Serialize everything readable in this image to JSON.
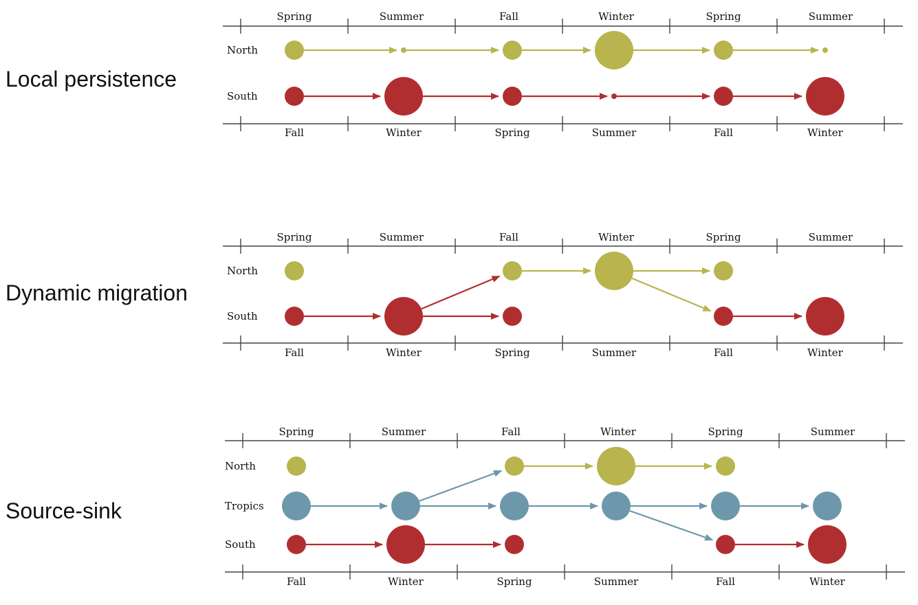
{
  "colors": {
    "North": "#b8b44e",
    "South": "#b12e30",
    "Tropics": "#6d97ab",
    "axis": "#444444"
  },
  "panels": [
    {
      "id": "local-persistence",
      "title": "Local persistence",
      "top_seasons": [
        "Spring",
        "Summer",
        "Fall",
        "Winter",
        "Spring",
        "Summer"
      ],
      "bottom_seasons": [
        "Fall",
        "Winter",
        "Spring",
        "Summer",
        "Fall",
        "Winter"
      ],
      "rows": [
        "North",
        "South"
      ],
      "nodes": [
        {
          "row": "North",
          "col": 0,
          "size": "m"
        },
        {
          "row": "North",
          "col": 1,
          "size": "xs"
        },
        {
          "row": "North",
          "col": 2,
          "size": "m"
        },
        {
          "row": "North",
          "col": 3,
          "size": "l"
        },
        {
          "row": "North",
          "col": 4,
          "size": "m"
        },
        {
          "row": "North",
          "col": 5,
          "size": "xs"
        },
        {
          "row": "South",
          "col": 0,
          "size": "m"
        },
        {
          "row": "South",
          "col": 1,
          "size": "l"
        },
        {
          "row": "South",
          "col": 2,
          "size": "m"
        },
        {
          "row": "South",
          "col": 3,
          "size": "xs"
        },
        {
          "row": "South",
          "col": 4,
          "size": "m"
        },
        {
          "row": "South",
          "col": 5,
          "size": "l"
        }
      ],
      "edges": [
        {
          "from": [
            "North",
            0
          ],
          "to": [
            "North",
            1
          ]
        },
        {
          "from": [
            "North",
            1
          ],
          "to": [
            "North",
            2
          ]
        },
        {
          "from": [
            "North",
            2
          ],
          "to": [
            "North",
            3
          ]
        },
        {
          "from": [
            "North",
            3
          ],
          "to": [
            "North",
            4
          ]
        },
        {
          "from": [
            "North",
            4
          ],
          "to": [
            "North",
            5
          ]
        },
        {
          "from": [
            "South",
            0
          ],
          "to": [
            "South",
            1
          ]
        },
        {
          "from": [
            "South",
            1
          ],
          "to": [
            "South",
            2
          ]
        },
        {
          "from": [
            "South",
            2
          ],
          "to": [
            "South",
            3
          ]
        },
        {
          "from": [
            "South",
            3
          ],
          "to": [
            "South",
            4
          ]
        },
        {
          "from": [
            "South",
            4
          ],
          "to": [
            "South",
            5
          ]
        }
      ]
    },
    {
      "id": "dynamic-migration",
      "title": "Dynamic migration",
      "top_seasons": [
        "Spring",
        "Summer",
        "Fall",
        "Winter",
        "Spring",
        "Summer"
      ],
      "bottom_seasons": [
        "Fall",
        "Winter",
        "Spring",
        "Summer",
        "Fall",
        "Winter"
      ],
      "rows": [
        "North",
        "South"
      ],
      "nodes": [
        {
          "row": "North",
          "col": 0,
          "size": "m"
        },
        {
          "row": "North",
          "col": 2,
          "size": "m"
        },
        {
          "row": "North",
          "col": 3,
          "size": "l"
        },
        {
          "row": "North",
          "col": 4,
          "size": "m"
        },
        {
          "row": "South",
          "col": 0,
          "size": "m"
        },
        {
          "row": "South",
          "col": 1,
          "size": "l"
        },
        {
          "row": "South",
          "col": 2,
          "size": "m"
        },
        {
          "row": "South",
          "col": 4,
          "size": "m"
        },
        {
          "row": "South",
          "col": 5,
          "size": "l"
        }
      ],
      "edges": [
        {
          "from": [
            "South",
            0
          ],
          "to": [
            "South",
            1
          ]
        },
        {
          "from": [
            "South",
            1
          ],
          "to": [
            "North",
            2
          ]
        },
        {
          "from": [
            "South",
            1
          ],
          "to": [
            "South",
            2
          ]
        },
        {
          "from": [
            "North",
            2
          ],
          "to": [
            "North",
            3
          ]
        },
        {
          "from": [
            "North",
            3
          ],
          "to": [
            "North",
            4
          ]
        },
        {
          "from": [
            "North",
            3
          ],
          "to": [
            "South",
            4
          ]
        },
        {
          "from": [
            "South",
            4
          ],
          "to": [
            "South",
            5
          ]
        }
      ]
    },
    {
      "id": "source-sink",
      "title": "Source-sink",
      "top_seasons": [
        "Spring",
        "Summer",
        "Fall",
        "Winter",
        "Spring",
        "Summer"
      ],
      "bottom_seasons": [
        "Fall",
        "Winter",
        "Spring",
        "Summer",
        "Fall",
        "Winter"
      ],
      "rows": [
        "North",
        "Tropics",
        "South"
      ],
      "nodes": [
        {
          "row": "North",
          "col": 0,
          "size": "m"
        },
        {
          "row": "North",
          "col": 2,
          "size": "m"
        },
        {
          "row": "North",
          "col": 3,
          "size": "l"
        },
        {
          "row": "North",
          "col": 4,
          "size": "m"
        },
        {
          "row": "Tropics",
          "col": 0,
          "size": "ml"
        },
        {
          "row": "Tropics",
          "col": 1,
          "size": "ml"
        },
        {
          "row": "Tropics",
          "col": 2,
          "size": "ml"
        },
        {
          "row": "Tropics",
          "col": 3,
          "size": "ml"
        },
        {
          "row": "Tropics",
          "col": 4,
          "size": "ml"
        },
        {
          "row": "Tropics",
          "col": 5,
          "size": "ml"
        },
        {
          "row": "South",
          "col": 0,
          "size": "m"
        },
        {
          "row": "South",
          "col": 1,
          "size": "l"
        },
        {
          "row": "South",
          "col": 2,
          "size": "m"
        },
        {
          "row": "South",
          "col": 4,
          "size": "m"
        },
        {
          "row": "South",
          "col": 5,
          "size": "l"
        }
      ],
      "edges": [
        {
          "from": [
            "Tropics",
            0
          ],
          "to": [
            "Tropics",
            1
          ]
        },
        {
          "from": [
            "Tropics",
            1
          ],
          "to": [
            "North",
            2
          ]
        },
        {
          "from": [
            "Tropics",
            1
          ],
          "to": [
            "Tropics",
            2
          ]
        },
        {
          "from": [
            "Tropics",
            2
          ],
          "to": [
            "Tropics",
            3
          ]
        },
        {
          "from": [
            "Tropics",
            3
          ],
          "to": [
            "Tropics",
            4
          ]
        },
        {
          "from": [
            "Tropics",
            3
          ],
          "to": [
            "South",
            4
          ]
        },
        {
          "from": [
            "Tropics",
            4
          ],
          "to": [
            "Tropics",
            5
          ]
        },
        {
          "from": [
            "North",
            2
          ],
          "to": [
            "North",
            3
          ]
        },
        {
          "from": [
            "North",
            3
          ],
          "to": [
            "North",
            4
          ]
        },
        {
          "from": [
            "South",
            0
          ],
          "to": [
            "South",
            1
          ]
        },
        {
          "from": [
            "South",
            1
          ],
          "to": [
            "South",
            2
          ]
        },
        {
          "from": [
            "South",
            4
          ],
          "to": [
            "South",
            5
          ]
        }
      ]
    }
  ]
}
